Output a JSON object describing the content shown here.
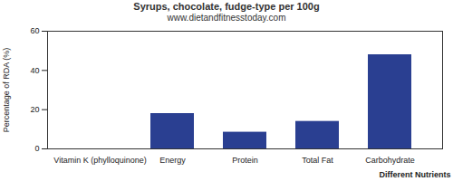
{
  "chart_data": {
    "type": "bar",
    "title": "Syrups, chocolate, fudge-type per 100g",
    "subtitle": "www.dietandfitnesstoday.com",
    "x_label": "Different Nutrients",
    "y_label": "Percentage of RDA (%)",
    "categories": [
      "Vitamin K (phylloquinone)",
      "Energy",
      "Protein",
      "Total Fat",
      "Carbohydrate"
    ],
    "values": [
      0,
      18,
      8.5,
      14,
      48
    ],
    "color": "#2a3f91",
    "ylim": [
      0,
      60
    ],
    "yticks": [
      0,
      20,
      40,
      60
    ],
    "grid": false
  }
}
